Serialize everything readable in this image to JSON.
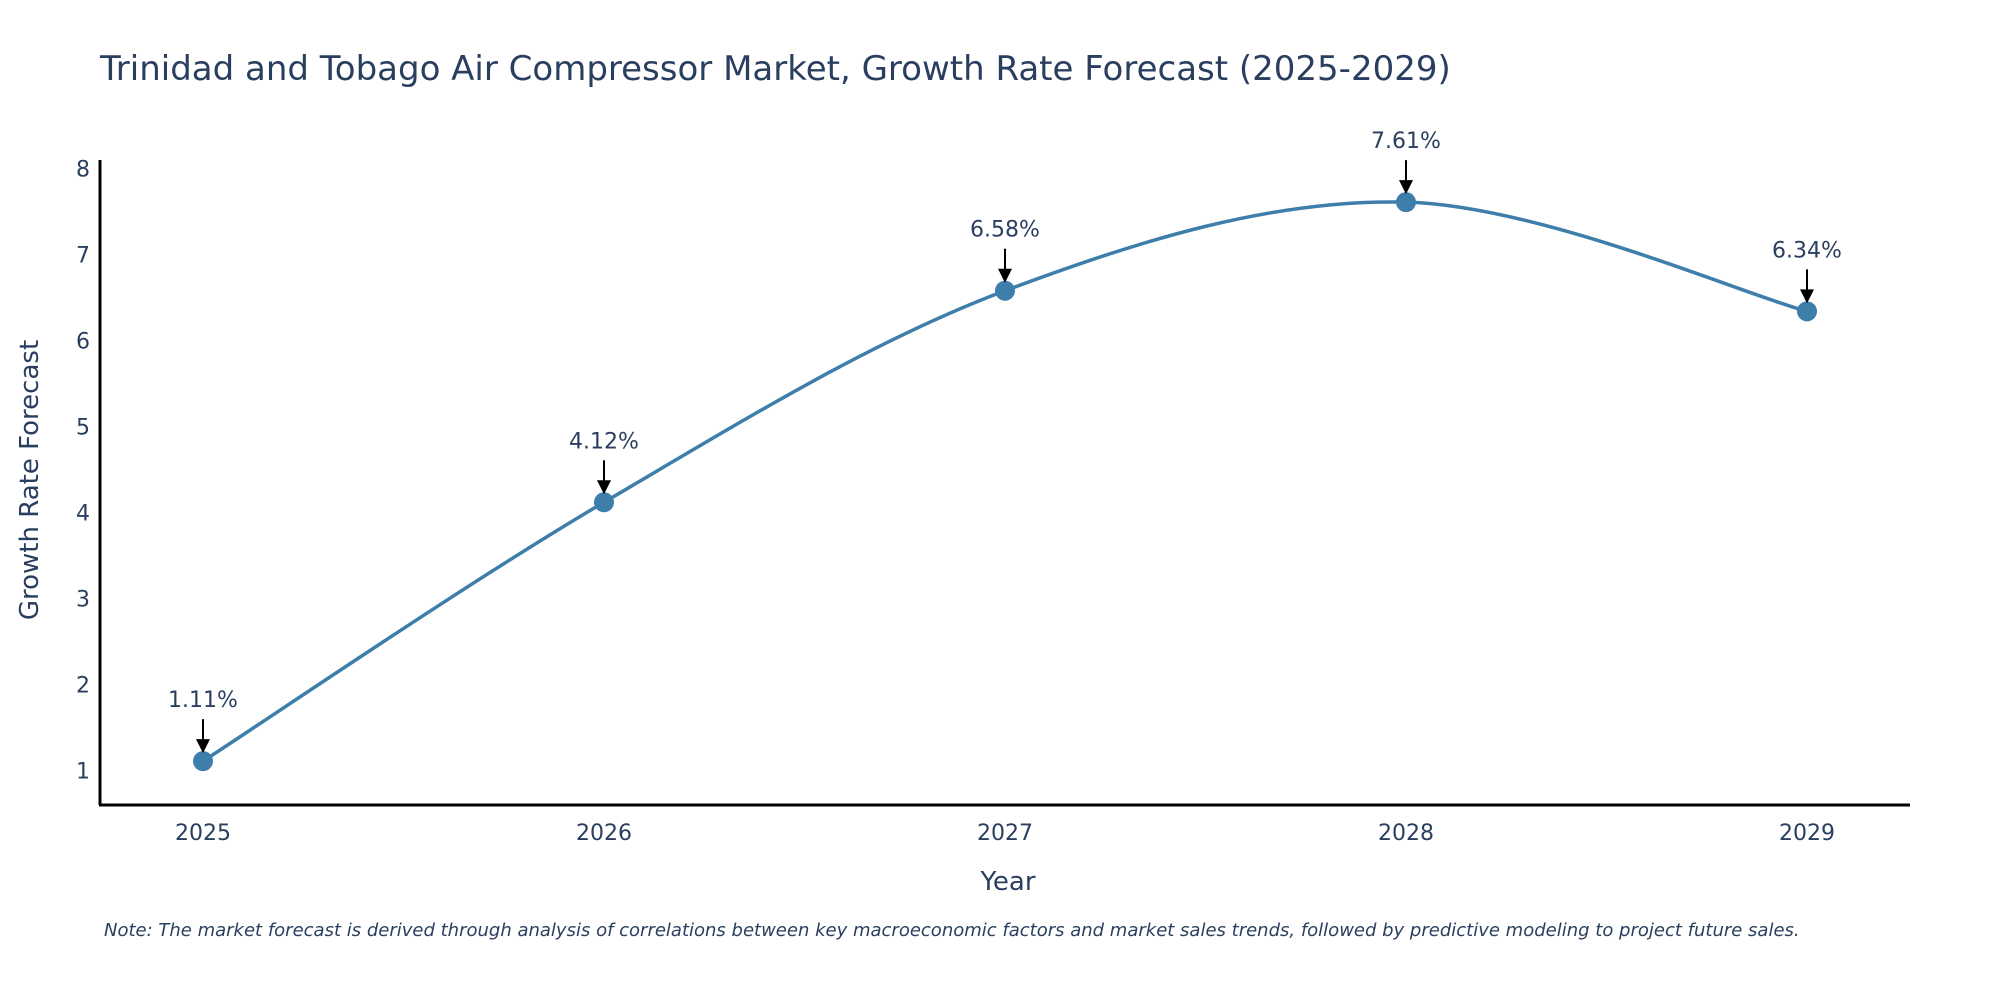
{
  "chart_data": {
    "type": "line",
    "title": "Trinidad and Tobago Air Compressor Market, Growth Rate Forecast (2025-2029)",
    "xlabel": "Year",
    "ylabel": "Growth Rate Forecast",
    "categories": [
      "2025",
      "2026",
      "2027",
      "2028",
      "2029"
    ],
    "series": [
      {
        "name": "Growth Rate Forecast",
        "values": [
          1.11,
          4.12,
          6.58,
          7.61,
          6.34
        ],
        "color": "#3d7eaa"
      }
    ],
    "annotations": [
      "1.11%",
      "4.12%",
      "6.58%",
      "7.61%",
      "6.34%"
    ],
    "ylim": [
      0.6,
      8.1
    ],
    "yticks": [
      1,
      2,
      3,
      4,
      5,
      6,
      7,
      8
    ],
    "grid": false,
    "legend": "none"
  },
  "note": "Note: The market forecast is derived through analysis of correlations between key macroeconomic factors and market sales trends, followed by predictive modeling to project future sales."
}
